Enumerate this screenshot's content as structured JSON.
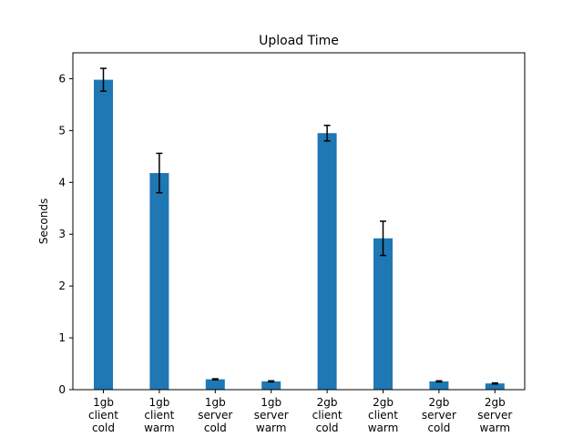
{
  "chart_data": {
    "type": "bar",
    "title": "Upload Time",
    "xlabel": "",
    "ylabel": "Seconds",
    "ylim": [
      0,
      6.5
    ],
    "yticks": [
      0,
      1,
      2,
      3,
      4,
      5,
      6
    ],
    "grid": false,
    "bar_color": "#1f77b4",
    "error_color": "#000000",
    "categories": [
      [
        "1gb",
        "client",
        "cold"
      ],
      [
        "1gb",
        "client",
        "warm"
      ],
      [
        "1gb",
        "server",
        "cold"
      ],
      [
        "1gb",
        "server",
        "warm"
      ],
      [
        "2gb",
        "client",
        "cold"
      ],
      [
        "2gb",
        "client",
        "warm"
      ],
      [
        "2gb",
        "server",
        "cold"
      ],
      [
        "2gb",
        "server",
        "warm"
      ]
    ],
    "values": [
      5.98,
      4.18,
      0.2,
      0.16,
      4.95,
      2.92,
      0.16,
      0.12
    ],
    "errors": [
      0.22,
      0.38,
      0.01,
      0.01,
      0.15,
      0.33,
      0.01,
      0.01
    ]
  }
}
